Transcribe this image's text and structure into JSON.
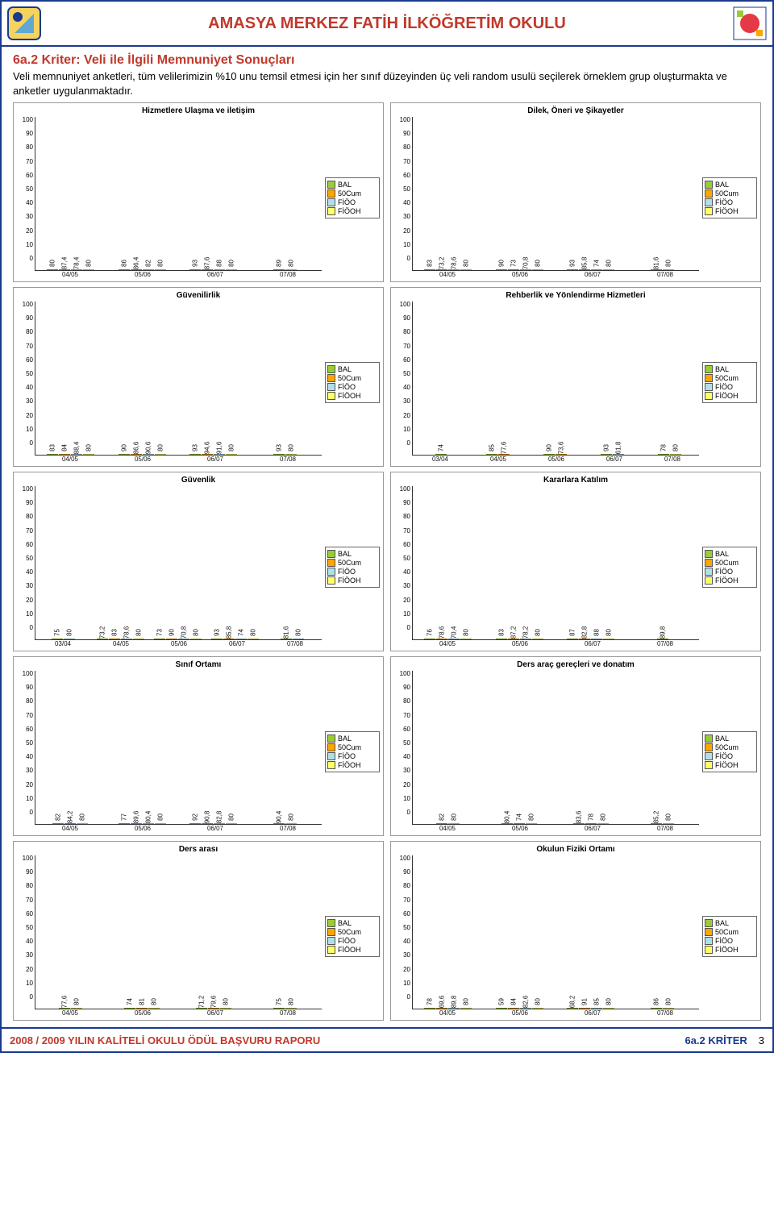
{
  "header": {
    "title": "AMASYA MERKEZ FATİH İLKÖĞRETİM OKULU"
  },
  "section": {
    "title": "6a.2 Kriter: Veli ile İlgili Memnuniyet Sonuçları",
    "body": "Veli memnuniyet anketleri, tüm velilerimizin %10 unu temsil etmesi için her sınıf düzeyinden üç veli random usulü seçilerek örneklem grup oluşturmakta ve anketler uygulanmaktadır."
  },
  "legend_labels": [
    "BAL",
    "50Cum",
    "FİÖO",
    "FİÖOH"
  ],
  "series_colors": [
    "#9acd32",
    "#ffa500",
    "#b0e0e6",
    "#ffff66"
  ],
  "y_ticks": [
    100,
    90,
    80,
    70,
    60,
    50,
    40,
    30,
    20,
    10,
    0
  ],
  "charts": [
    {
      "title": "Hizmetlere Ulaşma ve iletişim",
      "categories": [
        "04/05",
        "05/06",
        "06/07",
        "07/08"
      ],
      "series": [
        [
          80,
          87.4,
          78.4,
          80
        ],
        [
          86,
          86.4,
          82,
          80
        ],
        [
          93,
          87.6,
          88,
          80
        ],
        [
          89,
          null,
          null,
          80
        ]
      ],
      "series_missing": [
        false,
        false,
        false,
        true
      ]
    },
    {
      "title": "Dilek, Öneri ve Şikayetler",
      "categories": [
        "04/05",
        "05/06",
        "06/07",
        "07/08"
      ],
      "series": [
        [
          83,
          73.2,
          78.6,
          80
        ],
        [
          90,
          73,
          70.8,
          80
        ],
        [
          93,
          85.8,
          74,
          80
        ],
        [
          81.6,
          null,
          null,
          80
        ]
      ],
      "series_missing": [
        false,
        false,
        false,
        true
      ]
    },
    {
      "title": "Güvenilirlik",
      "categories": [
        "04/05",
        "05/06",
        "06/07",
        "07/08"
      ],
      "series": [
        [
          83,
          84,
          88.4,
          80
        ],
        [
          90,
          86.6,
          90.6,
          80
        ],
        [
          93,
          94.6,
          91.6,
          80
        ],
        [
          93,
          null,
          null,
          80
        ]
      ],
      "series_missing": [
        false,
        false,
        false,
        true
      ]
    },
    {
      "title": "Rehberlik ve Yönlendirme Hizmetleri",
      "categories": [
        "03/04",
        "04/05",
        "05/06",
        "06/07",
        "07/08"
      ],
      "series": [
        [
          74,
          null,
          null,
          null
        ],
        [
          85,
          77.6,
          null,
          null
        ],
        [
          90,
          73.6,
          null,
          null
        ],
        [
          93,
          null,
          61.8,
          null
        ],
        [
          78,
          null,
          null,
          80
        ]
      ],
      "series_missing": [
        true,
        true,
        true,
        true,
        true
      ]
    },
    {
      "title": "Güvenlik",
      "categories": [
        "03/04",
        "04/05",
        "05/06",
        "06/07",
        "07/08"
      ],
      "series": [
        [
          75,
          null,
          80,
          null
        ],
        [
          73.2,
          83,
          78.6,
          80
        ],
        [
          73,
          90,
          70.8,
          80
        ],
        [
          93,
          85.8,
          74,
          80
        ],
        [
          81.6,
          null,
          80,
          null
        ]
      ],
      "series_missing": [
        true,
        false,
        false,
        false,
        true
      ]
    },
    {
      "title": "Kararlara Katılım",
      "categories": [
        "04/05",
        "05/06",
        "06/07",
        "07/08"
      ],
      "series": [
        [
          76,
          78.6,
          70.4,
          80
        ],
        [
          83,
          87.2,
          78.2,
          80
        ],
        [
          87,
          82.8,
          88,
          80
        ],
        [
          89.8,
          null,
          null,
          null
        ]
      ],
      "series_missing": [
        false,
        false,
        false,
        true
      ]
    },
    {
      "title": "Sınıf Ortamı",
      "categories": [
        "04/05",
        "05/06",
        "06/07",
        "07/08"
      ],
      "series": [
        [
          82,
          84.2,
          null,
          80
        ],
        [
          77,
          89.6,
          80.4,
          80
        ],
        [
          92,
          90.8,
          82.8,
          80
        ],
        [
          90.4,
          null,
          null,
          80
        ]
      ],
      "series_missing": [
        false,
        false,
        false,
        true
      ]
    },
    {
      "title": "Ders araç gereçleri ve donatım",
      "categories": [
        "04/05",
        "05/06",
        "06/07",
        "07/08"
      ],
      "series": [
        [
          82,
          null,
          null,
          80
        ],
        [
          80.4,
          74,
          null,
          80
        ],
        [
          83.6,
          78,
          null,
          80
        ],
        [
          85.2,
          null,
          null,
          80
        ]
      ],
      "series_missing": [
        true,
        true,
        true,
        true
      ]
    },
    {
      "title": "Ders arası",
      "categories": [
        "04/05",
        "05/06",
        "06/07",
        "07/08"
      ],
      "series": [
        [
          77.6,
          null,
          null,
          80
        ],
        [
          74,
          81,
          null,
          80
        ],
        [
          71.2,
          79.6,
          null,
          80
        ],
        [
          75,
          null,
          null,
          80
        ]
      ],
      "series_missing": [
        true,
        true,
        true,
        true
      ]
    },
    {
      "title": "Okulun Fiziki Ortamı",
      "categories": [
        "04/05",
        "05/06",
        "06/07",
        "07/08"
      ],
      "series": [
        [
          78,
          69.6,
          89.8,
          80
        ],
        [
          59,
          84,
          82.6,
          80
        ],
        [
          68.2,
          91,
          85,
          80
        ],
        [
          86,
          null,
          null,
          80
        ]
      ],
      "series_missing": [
        false,
        false,
        false,
        true
      ]
    }
  ],
  "footer": {
    "left": "2008 / 2009 YILIN KALİTELİ OKULU ÖDÜL BAŞVURU RAPORU",
    "mid": "6a.2 KRİTER",
    "page": "3"
  }
}
